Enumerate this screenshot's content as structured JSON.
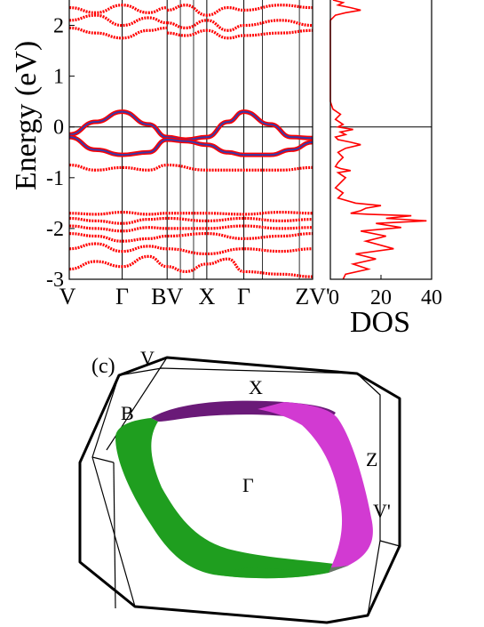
{
  "chart_data": [
    {
      "type": "line",
      "panel": "band-structure",
      "ylabel": "Energy (eV)",
      "ylim": [
        -3,
        2.5
      ],
      "yticks": [
        "-3",
        "-2",
        "-1",
        "0",
        "1",
        "2"
      ],
      "kpoints": [
        "V",
        "Γ",
        "BV",
        "X",
        "Γ",
        "ZV'"
      ],
      "kpoint_x": [
        0,
        1,
        1.85,
        2.6,
        3.3,
        4.6
      ],
      "colors": {
        "bands": "#ff0000",
        "fermi_bands": "#3a3aa8"
      },
      "series": [
        {
          "x": [
            0,
            0.5,
            1,
            1.5,
            1.85
          ],
          "y": [
            2.35,
            2.25,
            2.4,
            2.25,
            2.35
          ]
        },
        {
          "x": [
            0,
            0.5,
            1,
            1.5,
            1.85
          ],
          "y": [
            2.1,
            2.2,
            2.0,
            2.15,
            2.05
          ]
        },
        {
          "x": [
            0,
            0.5,
            1,
            1.5,
            1.85
          ],
          "y": [
            1.95,
            1.85,
            1.75,
            1.9,
            1.95
          ]
        },
        {
          "x": [
            1.85,
            2.2,
            2.6,
            3.0,
            3.3,
            4.0,
            4.6
          ],
          "y": [
            2.3,
            2.4,
            2.2,
            2.35,
            2.3,
            2.4,
            2.35
          ]
        },
        {
          "x": [
            1.85,
            2.2,
            2.6,
            3.0,
            3.3,
            4.0,
            4.6
          ],
          "y": [
            2.05,
            1.95,
            2.1,
            1.9,
            2.0,
            2.1,
            2.0
          ]
        },
        {
          "x": [
            1.85,
            2.2,
            2.6,
            3.0,
            3.3,
            4.0,
            4.6
          ],
          "y": [
            1.85,
            1.8,
            1.9,
            1.75,
            1.8,
            1.85,
            1.9
          ]
        },
        {
          "x": [
            0,
            0.5,
            1,
            1.5,
            1.85,
            2.2,
            2.6,
            3.0,
            3.3,
            3.8,
            4.2,
            4.6
          ],
          "y": [
            -0.15,
            0.1,
            0.3,
            0.05,
            -0.2,
            -0.25,
            -0.2,
            0.1,
            0.3,
            0.05,
            -0.2,
            -0.22
          ],
          "fermi": true
        },
        {
          "x": [
            0,
            0.5,
            1,
            1.5,
            1.85,
            2.2,
            2.6,
            3.0,
            3.3,
            3.8,
            4.2,
            4.6
          ],
          "y": [
            -0.2,
            -0.45,
            -0.55,
            -0.5,
            -0.25,
            -0.28,
            -0.35,
            -0.5,
            -0.55,
            -0.55,
            -0.45,
            -0.3
          ],
          "fermi": true
        },
        {
          "x": [
            0,
            0.5,
            1,
            1.5,
            1.85,
            2.6,
            3.3,
            4.0,
            4.6
          ],
          "y": [
            -0.75,
            -0.85,
            -0.8,
            -0.85,
            -0.75,
            -0.85,
            -0.85,
            -0.85,
            -0.8
          ]
        },
        {
          "x": [
            0,
            0.5,
            1,
            1.5,
            1.85,
            2.6,
            3.3,
            4.0,
            4.6
          ],
          "y": [
            -1.7,
            -1.72,
            -1.68,
            -1.72,
            -1.7,
            -1.7,
            -1.72,
            -1.68,
            -1.7
          ]
        },
        {
          "x": [
            0,
            0.5,
            1,
            1.5,
            1.85,
            2.6,
            3.3,
            4.0,
            4.6
          ],
          "y": [
            -1.8,
            -1.85,
            -1.9,
            -1.82,
            -1.8,
            -1.85,
            -1.8,
            -1.85,
            -1.82
          ]
        },
        {
          "x": [
            0,
            0.5,
            1,
            1.5,
            1.85,
            2.6,
            3.3,
            4.0,
            4.6
          ],
          "y": [
            -1.95,
            -2.0,
            -2.05,
            -1.98,
            -2.0,
            -2.0,
            -1.95,
            -2.0,
            -1.98
          ]
        },
        {
          "x": [
            0,
            0.5,
            1,
            1.5,
            1.85,
            2.6,
            3.3,
            4.0,
            4.6
          ],
          "y": [
            -2.1,
            -2.15,
            -2.25,
            -2.2,
            -2.15,
            -2.1,
            -2.2,
            -2.15,
            -2.1
          ]
        },
        {
          "x": [
            0,
            0.5,
            1,
            1.5,
            1.85,
            2.6,
            3.3,
            4.0,
            4.6
          ],
          "y": [
            -2.4,
            -2.3,
            -2.45,
            -2.35,
            -2.4,
            -2.5,
            -2.4,
            -2.45,
            -2.4
          ]
        },
        {
          "x": [
            0,
            0.5,
            1,
            1.5,
            1.85,
            2.2,
            2.6,
            3.0,
            3.3,
            4.0,
            4.6
          ],
          "y": [
            -2.8,
            -2.65,
            -2.75,
            -2.55,
            -2.75,
            -2.85,
            -2.7,
            -2.6,
            -2.85,
            -2.9,
            -2.95
          ]
        }
      ]
    },
    {
      "type": "line",
      "panel": "density-of-states",
      "xlabel": "DOS",
      "xlim": [
        0,
        40
      ],
      "ylim": [
        -3,
        2.5
      ],
      "xticks": [
        "0",
        "20",
        "40"
      ],
      "color": "#ff0000",
      "x": [
        1,
        5,
        3,
        8,
        12,
        6,
        2,
        0,
        0,
        0,
        0,
        0,
        1,
        4,
        2,
        5,
        3,
        9,
        4,
        6,
        2,
        3,
        8,
        12,
        6,
        3,
        5,
        3,
        2,
        4,
        8,
        3,
        6,
        4,
        2,
        5,
        3,
        10,
        20,
        14,
        12,
        8,
        15,
        32,
        22,
        38,
        18,
        28,
        12,
        22,
        14,
        25,
        10,
        18,
        9,
        15,
        6,
        5
      ],
      "y": [
        2.5,
        2.45,
        2.4,
        2.35,
        2.3,
        2.25,
        2.2,
        2.1,
        1.8,
        1.5,
        1.0,
        0.5,
        0.35,
        0.25,
        0.15,
        0.05,
        0.0,
        -0.05,
        -0.1,
        -0.15,
        -0.2,
        -0.25,
        -0.3,
        -0.35,
        -0.42,
        -0.5,
        -0.6,
        -0.7,
        -0.78,
        -0.82,
        -0.86,
        -0.9,
        -1.0,
        -1.1,
        -1.2,
        -1.3,
        -1.4,
        -1.5,
        -1.55,
        -1.6,
        -1.65,
        -1.7,
        -1.72,
        -1.75,
        -1.8,
        -1.85,
        -1.9,
        -1.98,
        -2.05,
        -2.15,
        -2.25,
        -2.4,
        -2.5,
        -2.6,
        -2.7,
        -2.8,
        -2.9,
        -3.0
      ]
    }
  ],
  "panel_c": {
    "label": "(c)",
    "bz_labels": {
      "v": "V",
      "x": "X",
      "b": "B",
      "gamma": "Γ",
      "z": "Z",
      "vprime": "V'"
    },
    "colors": {
      "green": "#1f9e1f",
      "purple": "#6a1a78",
      "magenta": "#d23ad2"
    }
  }
}
